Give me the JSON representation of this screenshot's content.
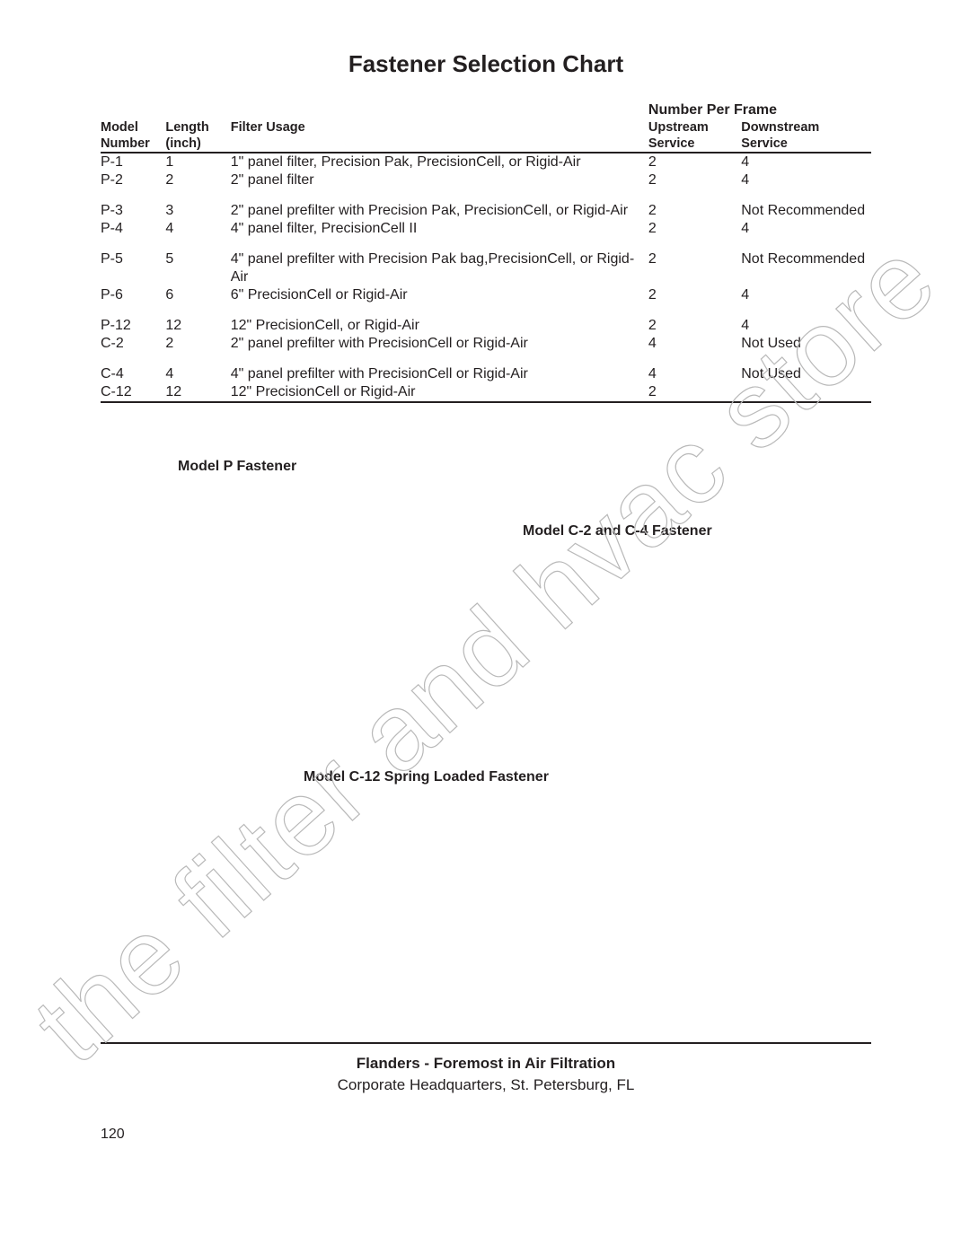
{
  "title": "Fastener Selection Chart",
  "watermark_text": "the filter and hvac store",
  "columns": {
    "model": {
      "l1": "Model",
      "l2": "Number"
    },
    "length": {
      "l1": "Length",
      "l2": "(inch)"
    },
    "usage": {
      "l1": "Filter Usage"
    },
    "span": "Number Per Frame",
    "up": {
      "l1": "Upstream",
      "l2": "Service"
    },
    "down": {
      "l1": "Downstream",
      "l2": "Service"
    }
  },
  "groups": [
    [
      {
        "model": "P-1",
        "length": "1",
        "usage": "1\" panel filter, Precision Pak, PrecisionCell, or Rigid-Air",
        "up": "2",
        "down": "4"
      },
      {
        "model": "P-2",
        "length": "2",
        "usage": "2\" panel filter",
        "up": "2",
        "down": "4"
      }
    ],
    [
      {
        "model": "P-3",
        "length": "3",
        "usage": "2\" panel prefilter with Precision Pak, PrecisionCell, or Rigid-Air",
        "up": "2",
        "down": "Not Recommended"
      },
      {
        "model": "P-4",
        "length": "4",
        "usage": "4\" panel filter, PrecisionCell II",
        "up": "2",
        "down": "4"
      }
    ],
    [
      {
        "model": "P-5",
        "length": "5",
        "usage": "4\" panel prefilter with Precision Pak bag,PrecisionCell, or Rigid-Air",
        "up": "2",
        "down": "Not Recommended"
      },
      {
        "model": "P-6",
        "length": "6",
        "usage": "6\" PrecisionCell or Rigid-Air",
        "up": "2",
        "down": "4"
      }
    ],
    [
      {
        "model": "P-12",
        "length": "12",
        "usage": "12\" PrecisionCell, or Rigid-Air",
        "up": "2",
        "down": "4"
      },
      {
        "model": "C-2",
        "length": "2",
        "usage": "2\" panel prefilter with PrecisionCell or Rigid-Air",
        "up": "4",
        "down": "Not Used"
      }
    ],
    [
      {
        "model": "C-4",
        "length": "4",
        "usage": "4\" panel prefilter with PrecisionCell or Rigid-Air",
        "up": "4",
        "down": "Not Used"
      },
      {
        "model": "C-12",
        "length": "12",
        "usage": "12\" PrecisionCell or Rigid-Air",
        "up": "2",
        "down": ""
      }
    ]
  ],
  "labels": {
    "p": "Model P Fastener",
    "c24": "Model C-2 and C-4 Fastener",
    "c12": "Model C-12 Spring Loaded Fastener"
  },
  "footer": {
    "line1": "Flanders - Foremost in Air Filtration",
    "line2": "Corporate Headquarters, St. Petersburg, FL",
    "page": "120"
  }
}
